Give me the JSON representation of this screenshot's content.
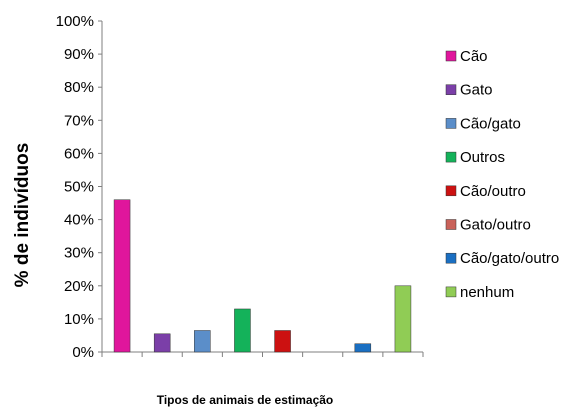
{
  "chart_data": {
    "type": "bar",
    "title": "",
    "xlabel": "Tipos de animais de estimação",
    "ylabel": "% de indivíduos",
    "ylim": [
      0,
      100
    ],
    "yticks": [
      "0%",
      "10%",
      "20%",
      "30%",
      "40%",
      "50%",
      "60%",
      "70%",
      "80%",
      "90%",
      "100%"
    ],
    "grid": false,
    "legend_position": "right",
    "categories": [
      "Cão",
      "Gato",
      "Cão/gato",
      "Outros",
      "Cão/outro",
      "Gato/outro",
      "Cão/gato/outro",
      "nenhum"
    ],
    "values": [
      46,
      5.5,
      6.5,
      13,
      6.5,
      0,
      2.5,
      20
    ],
    "colors": [
      "#e0169c",
      "#7b3fa8",
      "#5b8ec9",
      "#14b25a",
      "#cc1111",
      "#c9625a",
      "#1a6fc2",
      "#90cc55"
    ]
  }
}
